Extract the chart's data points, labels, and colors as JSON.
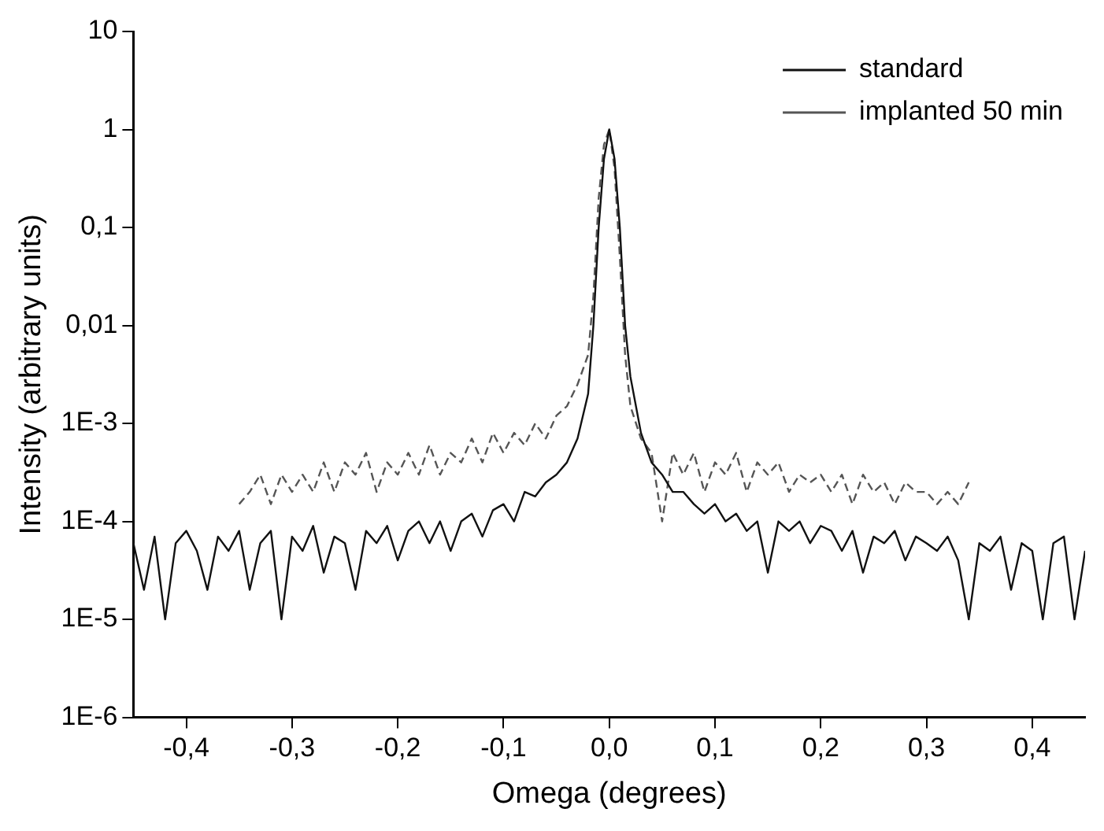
{
  "chart_data": {
    "type": "line",
    "xlabel": "Omega (degrees)",
    "ylabel": "Intensity (arbitrary units)",
    "log": "y",
    "grid": false,
    "legend": "top right",
    "marker": "none",
    "xlim": [
      -0.45,
      0.45
    ],
    "xticks": [
      {
        "value": -0.4,
        "label": "-0,4"
      },
      {
        "value": -0.3,
        "label": "-0,3"
      },
      {
        "value": -0.2,
        "label": "-0,2"
      },
      {
        "value": -0.1,
        "label": "-0,1"
      },
      {
        "value": 0,
        "label": "0,0"
      },
      {
        "value": 0.1,
        "label": "0,1"
      },
      {
        "value": 0.2,
        "label": "0,2"
      },
      {
        "value": 0.3,
        "label": "0,3"
      },
      {
        "value": 0.4,
        "label": "0,4"
      }
    ],
    "ylim": [
      1e-06,
      10
    ],
    "yticks": [
      {
        "value": 1e-06,
        "label": "1E-6"
      },
      {
        "value": 1e-05,
        "label": "1E-5"
      },
      {
        "value": 0.0001,
        "label": "1E-4"
      },
      {
        "value": 0.001,
        "label": "1E-3"
      },
      {
        "value": 0.01,
        "label": "0,01"
      },
      {
        "value": 0.1,
        "label": "0,1"
      },
      {
        "value": 1,
        "label": "1"
      },
      {
        "value": 10,
        "label": "10"
      }
    ],
    "series": [
      {
        "name": "standard",
        "color": "#111111",
        "line_style": "solid",
        "x": [
          -0.45,
          -0.44,
          -0.43,
          -0.42,
          -0.41,
          -0.4,
          -0.39,
          -0.38,
          -0.37,
          -0.36,
          -0.35,
          -0.34,
          -0.33,
          -0.32,
          -0.31,
          -0.3,
          -0.29,
          -0.28,
          -0.27,
          -0.26,
          -0.25,
          -0.24,
          -0.23,
          -0.22,
          -0.21,
          -0.2,
          -0.19,
          -0.18,
          -0.17,
          -0.16,
          -0.15,
          -0.14,
          -0.13,
          -0.12,
          -0.11,
          -0.1,
          -0.09,
          -0.08,
          -0.07,
          -0.06,
          -0.05,
          -0.04,
          -0.03,
          -0.02,
          -0.015,
          -0.01,
          -0.005,
          0,
          0.005,
          0.01,
          0.015,
          0.02,
          0.03,
          0.04,
          0.05,
          0.06,
          0.07,
          0.08,
          0.09,
          0.1,
          0.11,
          0.12,
          0.13,
          0.14,
          0.15,
          0.16,
          0.17,
          0.18,
          0.19,
          0.2,
          0.21,
          0.22,
          0.23,
          0.24,
          0.25,
          0.26,
          0.27,
          0.28,
          0.29,
          0.3,
          0.31,
          0.32,
          0.33,
          0.34,
          0.35,
          0.36,
          0.37,
          0.38,
          0.39,
          0.4,
          0.41,
          0.42,
          0.43,
          0.44,
          0.45
        ],
        "values": [
          6e-05,
          2e-05,
          7e-05,
          1e-05,
          6e-05,
          8e-05,
          5e-05,
          2e-05,
          7e-05,
          5e-05,
          8e-05,
          2e-05,
          6e-05,
          8e-05,
          1e-05,
          7e-05,
          5e-05,
          9e-05,
          3e-05,
          7e-05,
          6e-05,
          2e-05,
          8e-05,
          6e-05,
          9e-05,
          4e-05,
          8e-05,
          0.0001,
          6e-05,
          0.0001,
          5e-05,
          0.0001,
          0.00012,
          7e-05,
          0.00013,
          0.00015,
          0.0001,
          0.0002,
          0.00018,
          0.00025,
          0.0003,
          0.0004,
          0.0007,
          0.002,
          0.01,
          0.1,
          0.5,
          1,
          0.5,
          0.1,
          0.01,
          0.003,
          0.0008,
          0.0004,
          0.0003,
          0.0002,
          0.0002,
          0.00015,
          0.00012,
          0.00015,
          0.0001,
          0.00012,
          8e-05,
          0.0001,
          3e-05,
          0.0001,
          8e-05,
          0.0001,
          6e-05,
          9e-05,
          8e-05,
          5e-05,
          8e-05,
          3e-05,
          7e-05,
          6e-05,
          8e-05,
          4e-05,
          7e-05,
          6e-05,
          5e-05,
          7e-05,
          4e-05,
          1e-05,
          6e-05,
          5e-05,
          7e-05,
          2e-05,
          6e-05,
          5e-05,
          1e-05,
          6e-05,
          7e-05,
          1e-05,
          5e-05
        ]
      },
      {
        "name": "implanted 50 min",
        "color": "#555555",
        "line_style": "dashed",
        "x": [
          -0.35,
          -0.34,
          -0.33,
          -0.32,
          -0.31,
          -0.3,
          -0.29,
          -0.28,
          -0.27,
          -0.26,
          -0.25,
          -0.24,
          -0.23,
          -0.22,
          -0.21,
          -0.2,
          -0.19,
          -0.18,
          -0.17,
          -0.16,
          -0.15,
          -0.14,
          -0.13,
          -0.12,
          -0.11,
          -0.1,
          -0.09,
          -0.08,
          -0.07,
          -0.06,
          -0.05,
          -0.04,
          -0.03,
          -0.02,
          -0.015,
          -0.01,
          -0.005,
          0,
          0.005,
          0.01,
          0.015,
          0.02,
          0.03,
          0.04,
          0.05,
          0.06,
          0.07,
          0.08,
          0.09,
          0.1,
          0.11,
          0.12,
          0.13,
          0.14,
          0.15,
          0.16,
          0.17,
          0.18,
          0.19,
          0.2,
          0.21,
          0.22,
          0.23,
          0.24,
          0.25,
          0.26,
          0.27,
          0.28,
          0.29,
          0.3,
          0.31,
          0.32,
          0.33,
          0.34
        ],
        "values": [
          0.00015,
          0.0002,
          0.0003,
          0.00015,
          0.0003,
          0.0002,
          0.0003,
          0.0002,
          0.0004,
          0.0002,
          0.0004,
          0.0003,
          0.0005,
          0.0002,
          0.0004,
          0.0003,
          0.0005,
          0.0003,
          0.0006,
          0.0003,
          0.0005,
          0.0004,
          0.0007,
          0.0004,
          0.0008,
          0.0005,
          0.0008,
          0.0006,
          0.001,
          0.0007,
          0.0012,
          0.0015,
          0.0025,
          0.005,
          0.02,
          0.2,
          0.7,
          1,
          0.4,
          0.05,
          0.005,
          0.0015,
          0.0007,
          0.0005,
          0.0001,
          0.0005,
          0.0003,
          0.0005,
          0.0002,
          0.0004,
          0.0003,
          0.0005,
          0.0002,
          0.0004,
          0.0003,
          0.0004,
          0.0002,
          0.0003,
          0.00025,
          0.0003,
          0.0002,
          0.0003,
          0.00015,
          0.0003,
          0.0002,
          0.00025,
          0.00015,
          0.00025,
          0.0002,
          0.0002,
          0.00015,
          0.0002,
          0.00015,
          0.00025
        ]
      }
    ]
  }
}
